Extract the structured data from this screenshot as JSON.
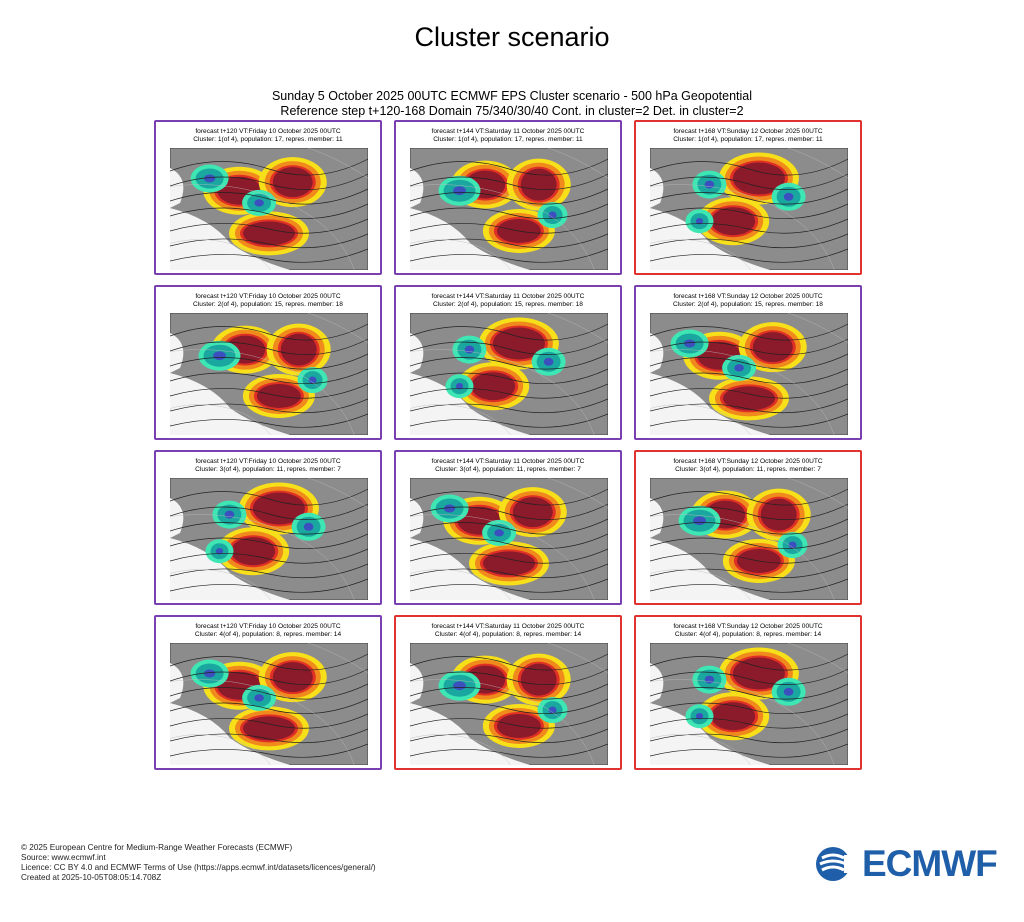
{
  "page": {
    "title": "Cluster scenario",
    "subtitle_line1": "Sunday 5 October 2025 00UTC ECMWF EPS Cluster scenario - 500 hPa Geopotential",
    "subtitle_line2": "Reference step t+120-168 Domain 75/340/30/40 Cont. in cluster=2 Det. in cluster=2"
  },
  "colors": {
    "purple_border": "#7a3fb0",
    "red_border": "#e0332f",
    "brand_blue": "#1f5ea8"
  },
  "panels": [
    {
      "header1": "forecast t+120 VT:Friday 10 October 2025 00UTC",
      "header2": "Cluster: 1(of 4), population: 17, repres. member: 11",
      "border": "purple"
    },
    {
      "header1": "forecast t+144 VT:Saturday 11 October 2025 00UTC",
      "header2": "Cluster: 1(of 4), population: 17, repres. member: 11",
      "border": "purple"
    },
    {
      "header1": "forecast t+168 VT:Sunday 12 October 2025 00UTC",
      "header2": "Cluster: 1(of 4), population: 17, repres. member: 11",
      "border": "red"
    },
    {
      "header1": "forecast t+120 VT:Friday 10 October 2025 00UTC",
      "header2": "Cluster: 2(of 4), population: 15, repres. member: 18",
      "border": "purple"
    },
    {
      "header1": "forecast t+144 VT:Saturday 11 October 2025 00UTC",
      "header2": "Cluster: 2(of 4), population: 15, repres. member: 18",
      "border": "purple"
    },
    {
      "header1": "forecast t+168 VT:Sunday 12 October 2025 00UTC",
      "header2": "Cluster: 2(of 4), population: 15, repres. member: 18",
      "border": "purple"
    },
    {
      "header1": "forecast t+120 VT:Friday 10 October 2025 00UTC",
      "header2": "Cluster: 3(of 4), population: 11, repres. member: 7",
      "border": "purple"
    },
    {
      "header1": "forecast t+144 VT:Saturday 11 October 2025 00UTC",
      "header2": "Cluster: 3(of 4), population: 11, repres. member: 7",
      "border": "purple"
    },
    {
      "header1": "forecast t+168 VT:Sunday 12 October 2025 00UTC",
      "header2": "Cluster: 3(of 4), population: 11, repres. member: 7",
      "border": "red"
    },
    {
      "header1": "forecast t+120 VT:Friday 10 October 2025 00UTC",
      "header2": "Cluster: 4(of 4), population: 8, repres. member: 14",
      "border": "purple"
    },
    {
      "header1": "forecast t+144 VT:Saturday 11 October 2025 00UTC",
      "header2": "Cluster: 4(of 4), population: 8, repres. member: 14",
      "border": "red"
    },
    {
      "header1": "forecast t+168 VT:Sunday 12 October 2025 00UTC",
      "header2": "Cluster: 4(of 4), population: 8, repres. member: 14",
      "border": "red"
    }
  ],
  "footer": {
    "line1": "© 2025 European Centre for Medium-Range Weather Forecasts (ECMWF)",
    "line2": "Source: www.ecmwf.int",
    "line3": "Licence: CC BY 4.0 and ECMWF Terms of Use (https://apps.ecmwf.int/datasets/licences/general/)",
    "line4": "Created at 2025-10-05T08:05:14.708Z"
  },
  "logo": {
    "text": "ECMWF",
    "icon": "ecmwf-logo-icon"
  }
}
